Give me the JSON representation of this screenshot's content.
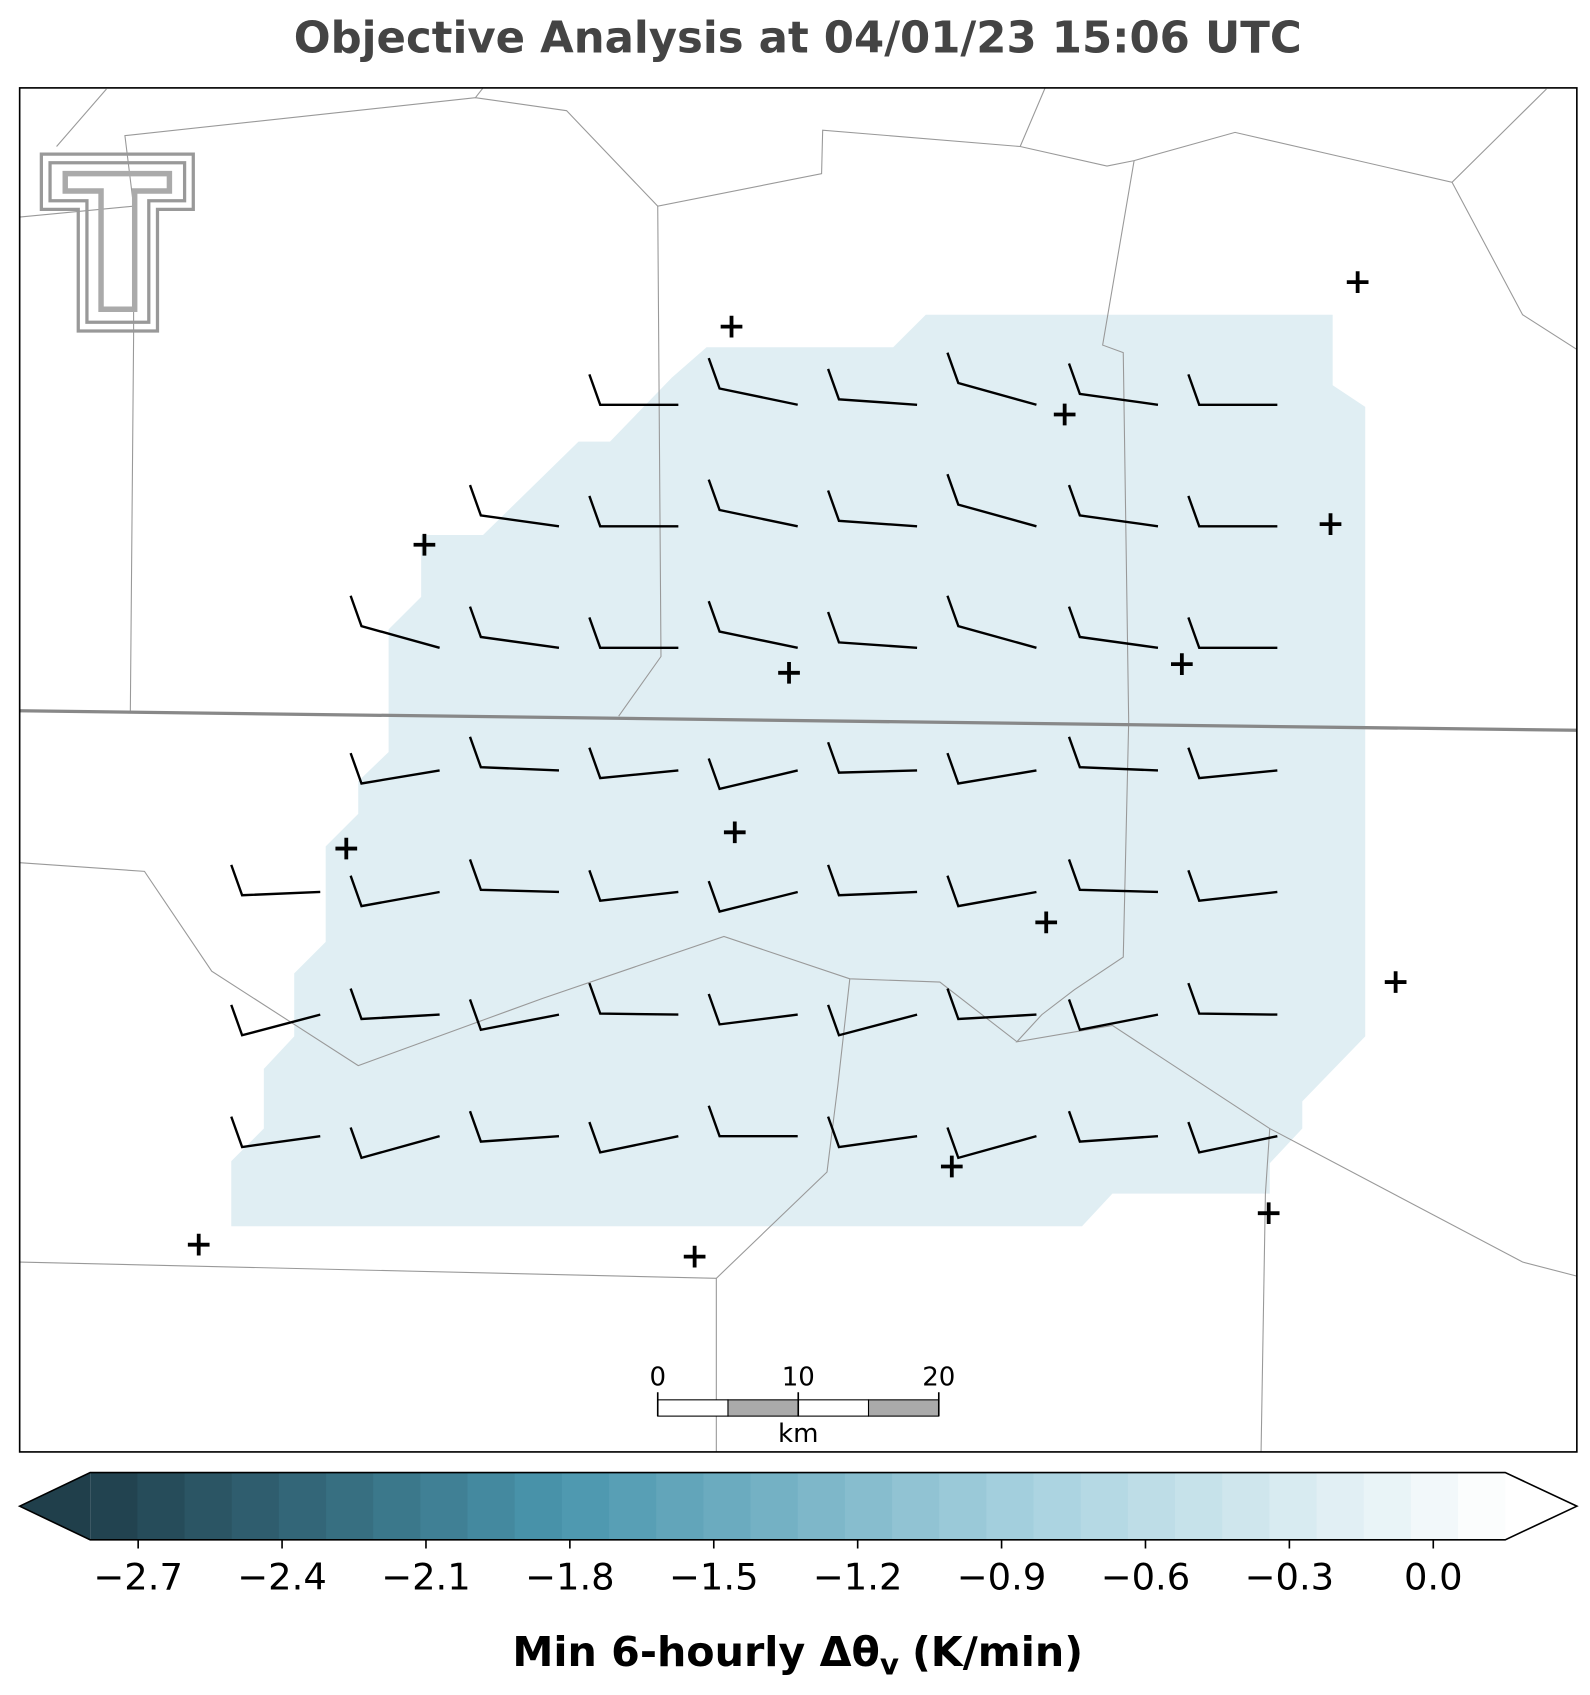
{
  "title": "Objective Analysis at 04/01/23 15:06 UTC",
  "scale_bar": {
    "ticks": [
      0,
      10,
      20
    ],
    "unit": "km"
  },
  "colorbar": {
    "lim": [
      -2.8,
      0.15
    ],
    "colors": [
      "#203f4b",
      "#4a96ae",
      "#a8d2df",
      "#ffffff"
    ],
    "ticks": [
      {
        "value": -2.7,
        "label": "−2.7"
      },
      {
        "value": -2.4,
        "label": "−2.4"
      },
      {
        "value": -2.1,
        "label": "−2.1"
      },
      {
        "value": -1.8,
        "label": "−1.8"
      },
      {
        "value": -1.5,
        "label": "−1.5"
      },
      {
        "value": -1.2,
        "label": "−1.2"
      },
      {
        "value": -0.9,
        "label": "−0.9"
      },
      {
        "value": -0.6,
        "label": "−0.6"
      },
      {
        "value": -0.3,
        "label": "−0.3"
      },
      {
        "value": 0.0,
        "label": "0.0"
      }
    ],
    "label": [
      "Min 6-hourly Δθ",
      "v",
      "(K/min)"
    ]
  }
}
